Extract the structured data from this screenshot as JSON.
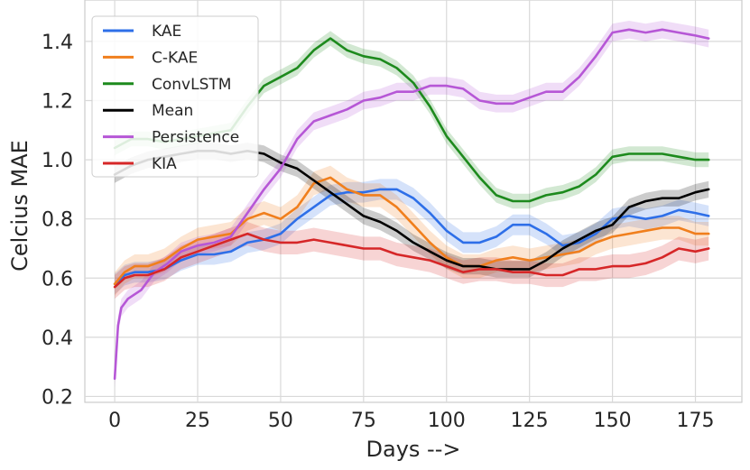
{
  "chart_data": {
    "type": "line",
    "title": "",
    "xlabel": "Days -->",
    "ylabel": "Celcius MAE",
    "xlim": [
      -9,
      189
    ],
    "ylim": [
      0.18,
      1.54
    ],
    "xticks": [
      0,
      25,
      50,
      75,
      100,
      125,
      150,
      175
    ],
    "yticks": [
      0.2,
      0.4,
      0.6,
      0.8,
      1.0,
      1.2,
      1.4
    ],
    "xtick_labels": [
      "0",
      "25",
      "50",
      "75",
      "100",
      "125",
      "150",
      "175"
    ],
    "ytick_labels": [
      "0.2",
      "0.4",
      "0.6",
      "0.8",
      "1.0",
      "1.2",
      "1.4"
    ],
    "grid": true,
    "legend_position": "top-left",
    "series": [
      {
        "name": "KAE",
        "color": "#2e6fe8",
        "band": 0.035,
        "points": [
          [
            0,
            0.58
          ],
          [
            3,
            0.61
          ],
          [
            6,
            0.62
          ],
          [
            10,
            0.62
          ],
          [
            15,
            0.63
          ],
          [
            20,
            0.66
          ],
          [
            25,
            0.68
          ],
          [
            30,
            0.68
          ],
          [
            35,
            0.69
          ],
          [
            40,
            0.72
          ],
          [
            45,
            0.73
          ],
          [
            50,
            0.75
          ],
          [
            55,
            0.8
          ],
          [
            60,
            0.84
          ],
          [
            65,
            0.88
          ],
          [
            70,
            0.89
          ],
          [
            75,
            0.89
          ],
          [
            80,
            0.9
          ],
          [
            85,
            0.9
          ],
          [
            90,
            0.87
          ],
          [
            95,
            0.82
          ],
          [
            100,
            0.76
          ],
          [
            105,
            0.72
          ],
          [
            110,
            0.72
          ],
          [
            115,
            0.74
          ],
          [
            120,
            0.78
          ],
          [
            125,
            0.78
          ],
          [
            130,
            0.75
          ],
          [
            135,
            0.71
          ],
          [
            140,
            0.72
          ],
          [
            145,
            0.75
          ],
          [
            150,
            0.8
          ],
          [
            155,
            0.81
          ],
          [
            160,
            0.8
          ],
          [
            165,
            0.81
          ],
          [
            170,
            0.83
          ],
          [
            175,
            0.82
          ],
          [
            179,
            0.81
          ]
        ]
      },
      {
        "name": "C-KAE",
        "color": "#f07f1d",
        "band": 0.04,
        "points": [
          [
            0,
            0.58
          ],
          [
            3,
            0.62
          ],
          [
            6,
            0.64
          ],
          [
            10,
            0.64
          ],
          [
            15,
            0.66
          ],
          [
            20,
            0.7
          ],
          [
            25,
            0.73
          ],
          [
            30,
            0.74
          ],
          [
            35,
            0.75
          ],
          [
            40,
            0.8
          ],
          [
            45,
            0.82
          ],
          [
            50,
            0.8
          ],
          [
            55,
            0.84
          ],
          [
            60,
            0.92
          ],
          [
            65,
            0.94
          ],
          [
            70,
            0.9
          ],
          [
            75,
            0.88
          ],
          [
            80,
            0.88
          ],
          [
            85,
            0.84
          ],
          [
            90,
            0.78
          ],
          [
            95,
            0.72
          ],
          [
            100,
            0.67
          ],
          [
            105,
            0.64
          ],
          [
            110,
            0.64
          ],
          [
            115,
            0.66
          ],
          [
            120,
            0.67
          ],
          [
            125,
            0.66
          ],
          [
            130,
            0.67
          ],
          [
            135,
            0.68
          ],
          [
            140,
            0.69
          ],
          [
            145,
            0.72
          ],
          [
            150,
            0.74
          ],
          [
            155,
            0.75
          ],
          [
            160,
            0.76
          ],
          [
            165,
            0.77
          ],
          [
            170,
            0.77
          ],
          [
            175,
            0.75
          ],
          [
            179,
            0.75
          ]
        ]
      },
      {
        "name": "ConvLSTM",
        "color": "#1d8a1d",
        "band": 0.025,
        "points": [
          [
            0,
            1.04
          ],
          [
            5,
            1.07
          ],
          [
            10,
            1.07
          ],
          [
            15,
            1.06
          ],
          [
            20,
            1.07
          ],
          [
            25,
            1.08
          ],
          [
            30,
            1.09
          ],
          [
            35,
            1.1
          ],
          [
            40,
            1.18
          ],
          [
            45,
            1.25
          ],
          [
            50,
            1.28
          ],
          [
            55,
            1.31
          ],
          [
            60,
            1.37
          ],
          [
            65,
            1.41
          ],
          [
            70,
            1.37
          ],
          [
            75,
            1.35
          ],
          [
            80,
            1.34
          ],
          [
            85,
            1.31
          ],
          [
            90,
            1.26
          ],
          [
            95,
            1.18
          ],
          [
            100,
            1.08
          ],
          [
            105,
            1.01
          ],
          [
            110,
            0.94
          ],
          [
            115,
            0.88
          ],
          [
            120,
            0.86
          ],
          [
            125,
            0.86
          ],
          [
            130,
            0.88
          ],
          [
            135,
            0.89
          ],
          [
            140,
            0.91
          ],
          [
            145,
            0.95
          ],
          [
            150,
            1.01
          ],
          [
            155,
            1.02
          ],
          [
            160,
            1.02
          ],
          [
            165,
            1.02
          ],
          [
            170,
            1.01
          ],
          [
            175,
            1.0
          ],
          [
            179,
            1.0
          ]
        ]
      },
      {
        "name": "Mean",
        "color": "#000000",
        "band": 0.028,
        "points": [
          [
            0,
            0.95
          ],
          [
            5,
            0.98
          ],
          [
            10,
            1.0
          ],
          [
            15,
            1.01
          ],
          [
            20,
            1.02
          ],
          [
            25,
            1.03
          ],
          [
            30,
            1.03
          ],
          [
            35,
            1.02
          ],
          [
            40,
            1.03
          ],
          [
            45,
            1.02
          ],
          [
            50,
            0.99
          ],
          [
            55,
            0.97
          ],
          [
            60,
            0.93
          ],
          [
            65,
            0.89
          ],
          [
            70,
            0.85
          ],
          [
            75,
            0.81
          ],
          [
            80,
            0.79
          ],
          [
            85,
            0.76
          ],
          [
            90,
            0.72
          ],
          [
            95,
            0.69
          ],
          [
            100,
            0.66
          ],
          [
            105,
            0.64
          ],
          [
            110,
            0.64
          ],
          [
            115,
            0.63
          ],
          [
            120,
            0.63
          ],
          [
            125,
            0.63
          ],
          [
            130,
            0.66
          ],
          [
            135,
            0.7
          ],
          [
            140,
            0.73
          ],
          [
            145,
            0.76
          ],
          [
            150,
            0.78
          ],
          [
            155,
            0.84
          ],
          [
            160,
            0.86
          ],
          [
            165,
            0.87
          ],
          [
            170,
            0.87
          ],
          [
            175,
            0.89
          ],
          [
            179,
            0.9
          ]
        ]
      },
      {
        "name": "Persistence",
        "color": "#b657d6",
        "band": 0.03,
        "points": [
          [
            0,
            0.26
          ],
          [
            1,
            0.44
          ],
          [
            2,
            0.5
          ],
          [
            4,
            0.53
          ],
          [
            8,
            0.56
          ],
          [
            12,
            0.62
          ],
          [
            16,
            0.65
          ],
          [
            20,
            0.69
          ],
          [
            25,
            0.71
          ],
          [
            30,
            0.72
          ],
          [
            35,
            0.74
          ],
          [
            40,
            0.82
          ],
          [
            45,
            0.9
          ],
          [
            50,
            0.97
          ],
          [
            55,
            1.07
          ],
          [
            60,
            1.13
          ],
          [
            65,
            1.15
          ],
          [
            70,
            1.17
          ],
          [
            75,
            1.2
          ],
          [
            80,
            1.21
          ],
          [
            85,
            1.23
          ],
          [
            90,
            1.23
          ],
          [
            95,
            1.25
          ],
          [
            100,
            1.25
          ],
          [
            105,
            1.24
          ],
          [
            110,
            1.2
          ],
          [
            115,
            1.19
          ],
          [
            120,
            1.19
          ],
          [
            125,
            1.21
          ],
          [
            130,
            1.23
          ],
          [
            135,
            1.23
          ],
          [
            140,
            1.28
          ],
          [
            145,
            1.35
          ],
          [
            150,
            1.43
          ],
          [
            155,
            1.44
          ],
          [
            160,
            1.43
          ],
          [
            165,
            1.44
          ],
          [
            170,
            1.43
          ],
          [
            175,
            1.42
          ],
          [
            179,
            1.41
          ]
        ]
      },
      {
        "name": "KIA",
        "color": "#d62728",
        "band": 0.04,
        "points": [
          [
            0,
            0.57
          ],
          [
            3,
            0.6
          ],
          [
            6,
            0.61
          ],
          [
            10,
            0.61
          ],
          [
            15,
            0.63
          ],
          [
            20,
            0.67
          ],
          [
            25,
            0.69
          ],
          [
            30,
            0.71
          ],
          [
            35,
            0.73
          ],
          [
            40,
            0.75
          ],
          [
            45,
            0.73
          ],
          [
            50,
            0.72
          ],
          [
            55,
            0.72
          ],
          [
            60,
            0.73
          ],
          [
            65,
            0.72
          ],
          [
            70,
            0.71
          ],
          [
            75,
            0.7
          ],
          [
            80,
            0.7
          ],
          [
            85,
            0.68
          ],
          [
            90,
            0.67
          ],
          [
            95,
            0.66
          ],
          [
            100,
            0.64
          ],
          [
            105,
            0.62
          ],
          [
            110,
            0.63
          ],
          [
            115,
            0.63
          ],
          [
            120,
            0.62
          ],
          [
            125,
            0.62
          ],
          [
            130,
            0.61
          ],
          [
            135,
            0.61
          ],
          [
            140,
            0.63
          ],
          [
            145,
            0.63
          ],
          [
            150,
            0.64
          ],
          [
            155,
            0.64
          ],
          [
            160,
            0.65
          ],
          [
            165,
            0.67
          ],
          [
            170,
            0.7
          ],
          [
            175,
            0.69
          ],
          [
            179,
            0.7
          ]
        ]
      }
    ]
  }
}
